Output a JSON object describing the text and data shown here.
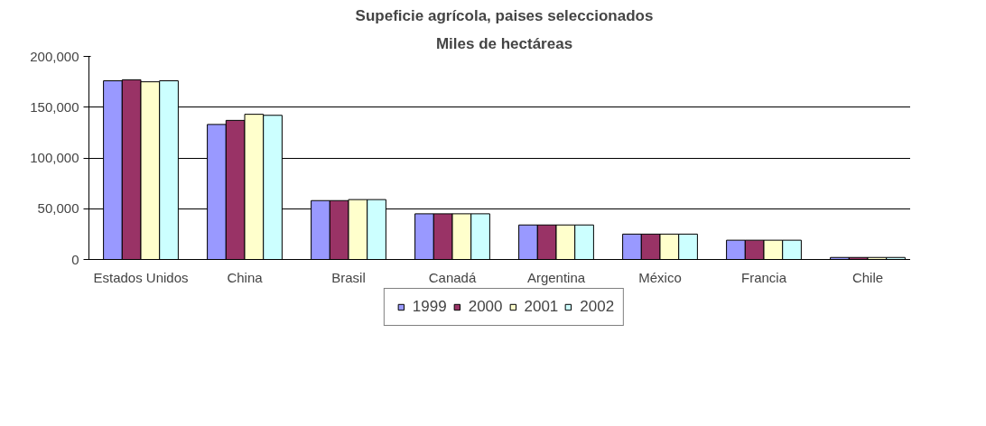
{
  "chart_data": {
    "type": "bar",
    "title": "Supeficie agrícola, paises seleccionados",
    "subtitle": "Miles de hectáreas",
    "categories": [
      "Estados Unidos",
      "China",
      "Brasil",
      "Canadá",
      "Argentina",
      "México",
      "Francia",
      "Chile"
    ],
    "series": [
      {
        "name": "1999",
        "color": "#9999ff",
        "values": [
          176000,
          133000,
          58000,
          45000,
          34000,
          25000,
          19000,
          2000
        ]
      },
      {
        "name": "2000",
        "color": "#993366",
        "values": [
          177000,
          137000,
          58000,
          45000,
          34000,
          25000,
          19000,
          2000
        ]
      },
      {
        "name": "2001",
        "color": "#ffffcc",
        "values": [
          175000,
          143000,
          59000,
          45000,
          34000,
          25000,
          19000,
          2000
        ]
      },
      {
        "name": "2002",
        "color": "#ccffff",
        "values": [
          176000,
          142000,
          59000,
          45000,
          34000,
          25000,
          19000,
          2000
        ]
      }
    ],
    "ylim": [
      0,
      200000
    ],
    "yticks": [
      {
        "value": 0,
        "label": "0"
      },
      {
        "value": 50000,
        "label": "50,000"
      },
      {
        "value": 100000,
        "label": "100,000"
      },
      {
        "value": 150000,
        "label": "150,000"
      },
      {
        "value": 200000,
        "label": "200,000"
      }
    ],
    "grid": "y",
    "legend": "bottom"
  }
}
